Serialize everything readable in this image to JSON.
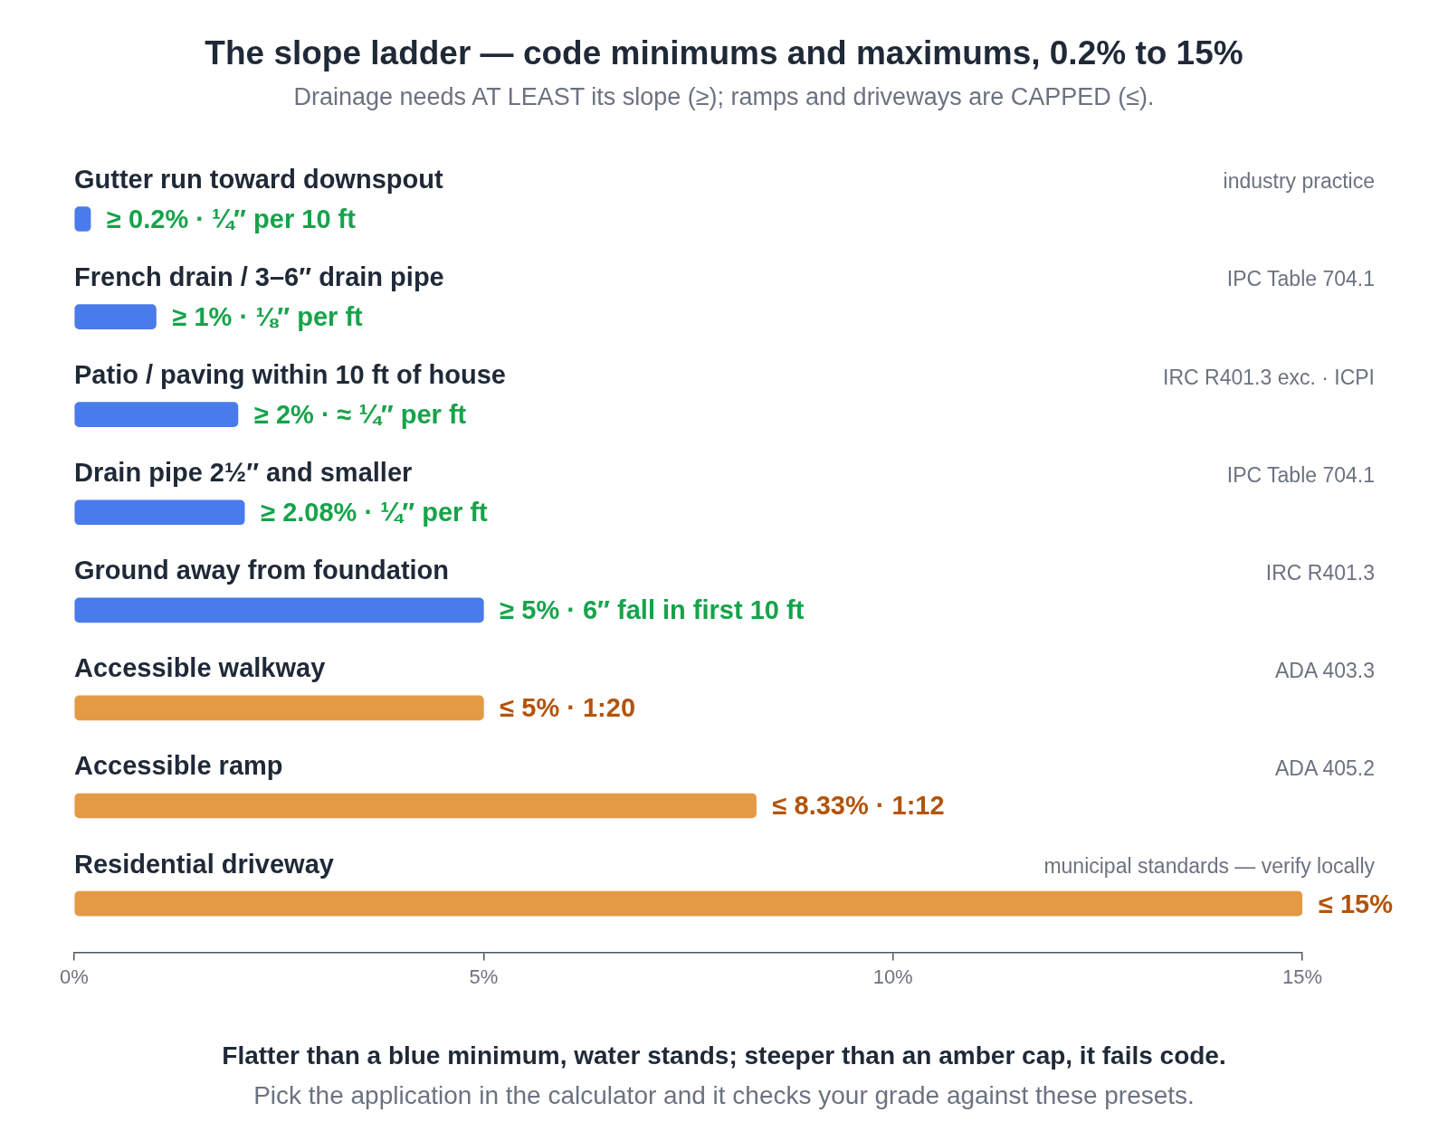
{
  "chart_data": {
    "type": "bar",
    "orientation": "horizontal",
    "stacked": true,
    "title": "The slope ladder — code minimums and maximums, 0.2% to 15%",
    "subtitle": "Drainage needs AT LEAST its slope (≥); ramps and driveways are CAPPED (≤).",
    "categories": [
      "Gutter run toward downspout",
      "French drain / 3–6″ drain pipe",
      "Patio / paving within 10 ft of house",
      "Drain pipe 2½″ and smaller",
      "Ground away from foundation",
      "Accessible walkway",
      "Accessible ramp",
      "Residential driveway"
    ],
    "series": [
      {
        "color": "#4a7bea",
        "values": [
          0.2,
          1,
          2,
          2.08,
          5,
          null,
          null,
          null
        ],
        "value_labels": [
          "≥ 0.2% · ¼″ per 10 ft",
          "≥ 1% · ⅛″ per ft",
          "≥ 2% · ≈ ¼″ per ft",
          "≥ 2.08% · ¼″ per ft",
          "≥ 5% · 6″ fall in first 10 ft",
          null,
          null,
          null
        ]
      },
      {
        "color": "#e49a45",
        "values": [
          null,
          null,
          null,
          null,
          null,
          5,
          8.33,
          15
        ],
        "value_labels": [
          null,
          null,
          null,
          null,
          null,
          "≤ 5% · 1:20",
          "≤ 8.33% · 1:12",
          "≤ 15%"
        ]
      }
    ],
    "xlim": [
      0,
      15
    ],
    "xticks": [
      {
        "value": 0,
        "label": "0%"
      },
      {
        "value": 5,
        "label": "5%"
      },
      {
        "value": 10,
        "label": "10%"
      },
      {
        "value": 15,
        "label": "15%"
      }
    ],
    "grid": false,
    "legend": false,
    "annotations": [
      "industry practice",
      "IPC Table 704.1",
      "IRC R401.3 exc. · ICPI",
      "IPC Table 704.1",
      "IRC R401.3",
      "ADA 403.3",
      "ADA 405.2",
      "municipal standards — verify locally",
      "Flatter than a blue minimum, water stands; steeper than an amber cap, it fails code.",
      "Pick the application in the calculator and it checks your grade against these presets."
    ]
  }
}
